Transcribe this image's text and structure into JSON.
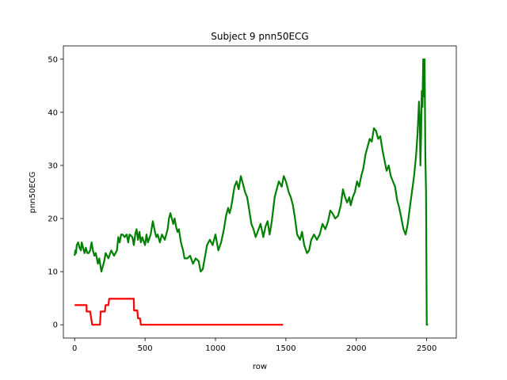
{
  "chart_data": {
    "type": "line",
    "title": "Subject 9 pnn50ECG",
    "xlabel": "row",
    "ylabel": "pnn50ECG",
    "xlim": [
      -80,
      2710
    ],
    "ylim": [
      -2.5,
      52.5
    ],
    "xticks": [
      0,
      500,
      1000,
      1500,
      2000,
      2500
    ],
    "yticks": [
      0,
      10,
      20,
      30,
      40,
      50
    ],
    "grid": false,
    "legend": "none",
    "series": [
      {
        "color": "#ff0000",
        "points": [
          [
            0,
            3.7
          ],
          [
            85,
            3.7
          ],
          [
            85,
            2.5
          ],
          [
            110,
            2.5
          ],
          [
            125,
            0
          ],
          [
            180,
            0
          ],
          [
            185,
            2.5
          ],
          [
            215,
            2.5
          ],
          [
            220,
            3.7
          ],
          [
            240,
            3.7
          ],
          [
            245,
            4.9
          ],
          [
            420,
            4.9
          ],
          [
            422,
            2.7
          ],
          [
            445,
            2.7
          ],
          [
            450,
            1.2
          ],
          [
            465,
            1.2
          ],
          [
            470,
            0
          ],
          [
            1480,
            0
          ]
        ]
      },
      {
        "color": "#008000",
        "points": [
          [
            0,
            13
          ],
          [
            5,
            14
          ],
          [
            10,
            13.5
          ],
          [
            15,
            15
          ],
          [
            25,
            15.5
          ],
          [
            35,
            14.5
          ],
          [
            45,
            14
          ],
          [
            50,
            15.5
          ],
          [
            60,
            14.5
          ],
          [
            70,
            13.5
          ],
          [
            80,
            14.5
          ],
          [
            90,
            13.5
          ],
          [
            100,
            13.5
          ],
          [
            110,
            14
          ],
          [
            120,
            15.5
          ],
          [
            130,
            14
          ],
          [
            140,
            13
          ],
          [
            150,
            13.5
          ],
          [
            165,
            11.5
          ],
          [
            175,
            12.5
          ],
          [
            190,
            10
          ],
          [
            200,
            11
          ],
          [
            210,
            12
          ],
          [
            220,
            13.5
          ],
          [
            240,
            12.5
          ],
          [
            260,
            14
          ],
          [
            280,
            13
          ],
          [
            300,
            14
          ],
          [
            310,
            16.5
          ],
          [
            320,
            15.5
          ],
          [
            330,
            17
          ],
          [
            340,
            17
          ],
          [
            355,
            16.5
          ],
          [
            370,
            17
          ],
          [
            380,
            15.5
          ],
          [
            390,
            17
          ],
          [
            410,
            16.5
          ],
          [
            420,
            15
          ],
          [
            430,
            17
          ],
          [
            440,
            18
          ],
          [
            450,
            16
          ],
          [
            460,
            17.5
          ],
          [
            470,
            15.5
          ],
          [
            480,
            16.5
          ],
          [
            500,
            15
          ],
          [
            510,
            17
          ],
          [
            520,
            15.5
          ],
          [
            540,
            17
          ],
          [
            555,
            19.5
          ],
          [
            570,
            17.5
          ],
          [
            580,
            16.5
          ],
          [
            590,
            17
          ],
          [
            605,
            15.5
          ],
          [
            620,
            17
          ],
          [
            640,
            16
          ],
          [
            660,
            18
          ],
          [
            670,
            20
          ],
          [
            680,
            21
          ],
          [
            690,
            20
          ],
          [
            700,
            19
          ],
          [
            710,
            20
          ],
          [
            720,
            18.5
          ],
          [
            730,
            17.5
          ],
          [
            740,
            18
          ],
          [
            755,
            15.5
          ],
          [
            770,
            14
          ],
          [
            780,
            12.5
          ],
          [
            800,
            12.5
          ],
          [
            820,
            13
          ],
          [
            840,
            11.5
          ],
          [
            860,
            12.5
          ],
          [
            880,
            12
          ],
          [
            895,
            10
          ],
          [
            910,
            10.5
          ],
          [
            920,
            12
          ],
          [
            930,
            13.5
          ],
          [
            940,
            15
          ],
          [
            960,
            16
          ],
          [
            980,
            15
          ],
          [
            1000,
            17
          ],
          [
            1020,
            14
          ],
          [
            1040,
            15.5
          ],
          [
            1060,
            18
          ],
          [
            1075,
            20.5
          ],
          [
            1090,
            22
          ],
          [
            1100,
            21
          ],
          [
            1110,
            22
          ],
          [
            1120,
            23.5
          ],
          [
            1135,
            26
          ],
          [
            1150,
            27
          ],
          [
            1165,
            25.5
          ],
          [
            1180,
            28
          ],
          [
            1195,
            26.5
          ],
          [
            1210,
            25
          ],
          [
            1225,
            24
          ],
          [
            1240,
            21.5
          ],
          [
            1255,
            19
          ],
          [
            1270,
            18
          ],
          [
            1285,
            16.5
          ],
          [
            1300,
            17.5
          ],
          [
            1320,
            19
          ],
          [
            1340,
            16.5
          ],
          [
            1355,
            18.5
          ],
          [
            1370,
            19.5
          ],
          [
            1385,
            17
          ],
          [
            1400,
            19.5
          ],
          [
            1420,
            24
          ],
          [
            1435,
            25.5
          ],
          [
            1450,
            27
          ],
          [
            1470,
            26
          ],
          [
            1485,
            28
          ],
          [
            1500,
            27
          ],
          [
            1520,
            25
          ],
          [
            1535,
            24
          ],
          [
            1550,
            22.5
          ],
          [
            1565,
            20
          ],
          [
            1580,
            17
          ],
          [
            1600,
            16
          ],
          [
            1615,
            17.5
          ],
          [
            1630,
            15
          ],
          [
            1650,
            13.5
          ],
          [
            1665,
            14
          ],
          [
            1680,
            16
          ],
          [
            1700,
            17
          ],
          [
            1720,
            16
          ],
          [
            1740,
            17
          ],
          [
            1760,
            19
          ],
          [
            1780,
            18
          ],
          [
            1800,
            19.5
          ],
          [
            1815,
            21.5
          ],
          [
            1830,
            21
          ],
          [
            1850,
            20
          ],
          [
            1870,
            20.5
          ],
          [
            1890,
            22.5
          ],
          [
            1905,
            25.5
          ],
          [
            1920,
            24
          ],
          [
            1935,
            23
          ],
          [
            1950,
            24
          ],
          [
            1960,
            22.5
          ],
          [
            1975,
            24
          ],
          [
            1990,
            25
          ],
          [
            2005,
            27
          ],
          [
            2020,
            26
          ],
          [
            2035,
            28
          ],
          [
            2050,
            29.5
          ],
          [
            2065,
            32
          ],
          [
            2080,
            33.5
          ],
          [
            2095,
            35
          ],
          [
            2110,
            34.5
          ],
          [
            2125,
            37
          ],
          [
            2140,
            36.5
          ],
          [
            2155,
            35
          ],
          [
            2170,
            35.5
          ],
          [
            2185,
            33
          ],
          [
            2200,
            31
          ],
          [
            2215,
            29
          ],
          [
            2230,
            30
          ],
          [
            2245,
            28
          ],
          [
            2260,
            27
          ],
          [
            2275,
            26
          ],
          [
            2290,
            23.5
          ],
          [
            2305,
            22
          ],
          [
            2320,
            20
          ],
          [
            2335,
            18
          ],
          [
            2350,
            17
          ],
          [
            2365,
            19
          ],
          [
            2380,
            22
          ],
          [
            2395,
            25
          ],
          [
            2410,
            28
          ],
          [
            2425,
            32
          ],
          [
            2435,
            36
          ],
          [
            2445,
            42
          ],
          [
            2450,
            39
          ],
          [
            2455,
            30
          ],
          [
            2460,
            36
          ],
          [
            2465,
            44
          ],
          [
            2470,
            41
          ],
          [
            2475,
            50
          ],
          [
            2480,
            43
          ],
          [
            2485,
            50
          ],
          [
            2490,
            32
          ],
          [
            2495,
            25
          ],
          [
            2500,
            0
          ],
          [
            2510,
            0
          ]
        ]
      }
    ]
  }
}
